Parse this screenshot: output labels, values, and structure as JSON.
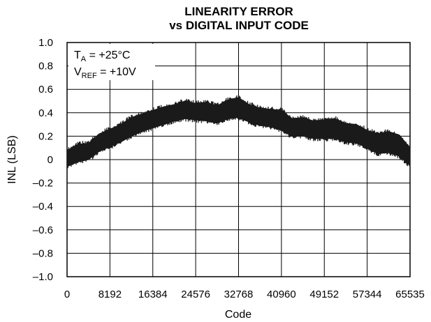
{
  "chart_data": {
    "type": "line",
    "title_line1": "LINEARITY ERROR",
    "title_line2": "vs DIGITAL INPUT CODE",
    "xlabel": "Code",
    "ylabel": "INL (LSB)",
    "xlim": [
      0,
      65535
    ],
    "ylim": [
      -1.0,
      1.0
    ],
    "grid": true,
    "x_ticks": [
      0,
      8192,
      16384,
      24576,
      32768,
      40960,
      49152,
      57344,
      65535
    ],
    "x_tick_labels": [
      "0",
      "8192",
      "16384",
      "24576",
      "32768",
      "40960",
      "49152",
      "57344",
      "65535"
    ],
    "y_ticks": [
      1.0,
      0.8,
      0.6,
      0.4,
      0.2,
      0,
      -0.2,
      -0.4,
      -0.6,
      -0.8,
      -1.0
    ],
    "y_tick_labels": [
      "1.0",
      "0.8",
      "0.6",
      "0.4",
      "0.2",
      "0",
      "–0.2",
      "–0.4",
      "–0.6",
      "–0.8",
      "–1.0"
    ],
    "annotations": {
      "ta_main": "T",
      "ta_sub": "A",
      "ta_value": " = +25°C",
      "vref_main": "V",
      "vref_sub": "REF",
      "vref_value": " = +10V"
    },
    "series": [
      {
        "x": [
          0,
          2048,
          4096,
          6144,
          8192,
          10240,
          12288,
          14336,
          16384,
          18432,
          20480,
          22528,
          24576,
          26624,
          28672,
          30720,
          32768,
          34816,
          36864,
          38912,
          40960,
          43008,
          45056,
          47104,
          49152,
          51200,
          53248,
          55296,
          57344,
          59392,
          61440,
          63488,
          65535
        ],
        "y_upper": [
          0.08,
          0.13,
          0.14,
          0.22,
          0.26,
          0.3,
          0.36,
          0.39,
          0.42,
          0.45,
          0.47,
          0.5,
          0.48,
          0.49,
          0.46,
          0.51,
          0.53,
          0.47,
          0.44,
          0.43,
          0.42,
          0.35,
          0.36,
          0.33,
          0.34,
          0.35,
          0.31,
          0.3,
          0.25,
          0.22,
          0.24,
          0.21,
          0.1
        ],
        "y_lower": [
          -0.06,
          -0.02,
          0.0,
          0.07,
          0.11,
          0.15,
          0.2,
          0.24,
          0.27,
          0.3,
          0.33,
          0.35,
          0.34,
          0.33,
          0.31,
          0.35,
          0.36,
          0.32,
          0.29,
          0.28,
          0.25,
          0.2,
          0.2,
          0.18,
          0.18,
          0.18,
          0.15,
          0.14,
          0.1,
          0.05,
          0.06,
          0.03,
          -0.05
        ]
      }
    ],
    "line_color": "#1a1a1a"
  }
}
